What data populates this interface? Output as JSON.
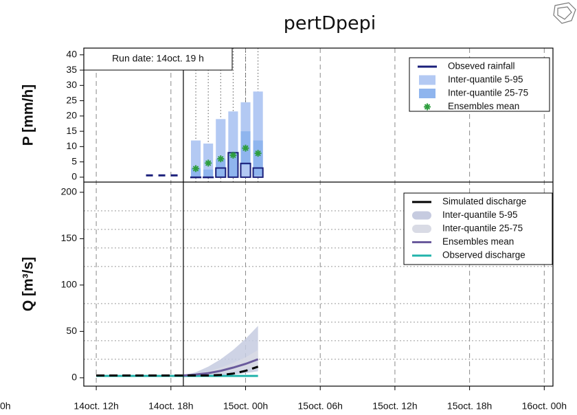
{
  "title": "pertDpepi",
  "cropped_label": "0h",
  "run_label": "Run date: 14oct. 19 h",
  "run_x": 19,
  "chart_data": [
    {
      "type": "bar",
      "ylabel": "P [mm/h]",
      "xlim": [
        11,
        48.7
      ],
      "ylim": [
        -1.6,
        42.2
      ],
      "yticks": [
        0,
        5,
        10,
        15,
        20,
        25,
        30,
        35,
        40
      ],
      "legend": "top-right",
      "x": [
        20,
        21,
        22,
        23,
        24,
        25
      ],
      "series": [
        {
          "name": "Obseved rainfall",
          "color": "#1a1f7a",
          "dashed": true,
          "x": [
            16,
            17,
            18,
            19
          ],
          "values": [
            0.6,
            0.6,
            0.6,
            0.6
          ],
          "bar_values": [
            0,
            0,
            3,
            8,
            4.5,
            3
          ]
        },
        {
          "name": "Inter-quantile 5-95",
          "color": "#b3c9f3",
          "low": [
            0,
            0,
            0,
            0,
            0,
            0
          ],
          "high": [
            12,
            11,
            19,
            21.5,
            24.5,
            28
          ]
        },
        {
          "name": "Inter-quantile 25-75",
          "color": "#8fb5ee",
          "low": [
            0,
            0,
            0,
            0,
            4,
            0.5
          ],
          "high": [
            3,
            2.5,
            6,
            8,
            15,
            12
          ]
        },
        {
          "name": "Ensembles mean",
          "color": "#2e9e3e",
          "values": [
            2.8,
            4.6,
            6,
            7.2,
            9.5,
            7.8
          ]
        }
      ]
    },
    {
      "type": "line",
      "ylabel": "Q [m³/s]",
      "xlim": [
        11,
        48.7
      ],
      "ylim": [
        -9,
        211
      ],
      "yticks": [
        0,
        50,
        100,
        150,
        200
      ],
      "grid_lines": [
        20,
        40,
        60,
        80,
        120,
        140,
        160,
        180
      ],
      "legend": "top-right",
      "xticks": [
        {
          "value": 12,
          "label": "14oct. 12h"
        },
        {
          "value": 18,
          "label": "14oct. 18h"
        },
        {
          "value": 24,
          "label": "15oct. 00h"
        },
        {
          "value": 30,
          "label": "15oct. 06h"
        },
        {
          "value": 36,
          "label": "15oct. 12h"
        },
        {
          "value": 42,
          "label": "15oct. 18h"
        },
        {
          "value": 48,
          "label": "16oct. 00h"
        }
      ],
      "x": [
        12,
        13,
        14,
        15,
        16,
        17,
        18,
        19,
        20,
        21,
        22,
        23,
        24,
        25
      ],
      "series": [
        {
          "name": "Simulated discharge",
          "color": "#000000",
          "dashed": true,
          "values": [
            2.5,
            2.5,
            2.5,
            2.5,
            2.5,
            2.5,
            2.5,
            2.5,
            2.5,
            2.5,
            3,
            4.5,
            7.5,
            12
          ]
        },
        {
          "name": "Inter-quantile 5-95",
          "color": "#c6cbe0",
          "low": [
            null,
            null,
            null,
            null,
            null,
            null,
            null,
            2.5,
            2,
            2,
            2.5,
            3.5,
            5,
            7
          ],
          "high": [
            null,
            null,
            null,
            null,
            null,
            null,
            null,
            2.5,
            6,
            12,
            20,
            30,
            42,
            56
          ]
        },
        {
          "name": "Inter-quantile 25-75",
          "color": "#d9dbe5",
          "low": [
            null,
            null,
            null,
            null,
            null,
            null,
            null,
            2.5,
            3,
            3.5,
            5,
            7,
            9,
            12
          ],
          "high": [
            null,
            null,
            null,
            null,
            null,
            null,
            null,
            2.5,
            4,
            7,
            11,
            16,
            22,
            30
          ]
        },
        {
          "name": "Ensembles mean",
          "color": "#6a5a9c",
          "values": [
            null,
            null,
            null,
            null,
            null,
            null,
            null,
            2.5,
            3.5,
            5,
            7.5,
            11,
            15,
            20
          ]
        },
        {
          "name": "Observed discharge",
          "color": "#22b3ab",
          "values": [
            2,
            2,
            2,
            2,
            2,
            2,
            2,
            2,
            2,
            2,
            2,
            2,
            2,
            2
          ]
        }
      ]
    }
  ]
}
